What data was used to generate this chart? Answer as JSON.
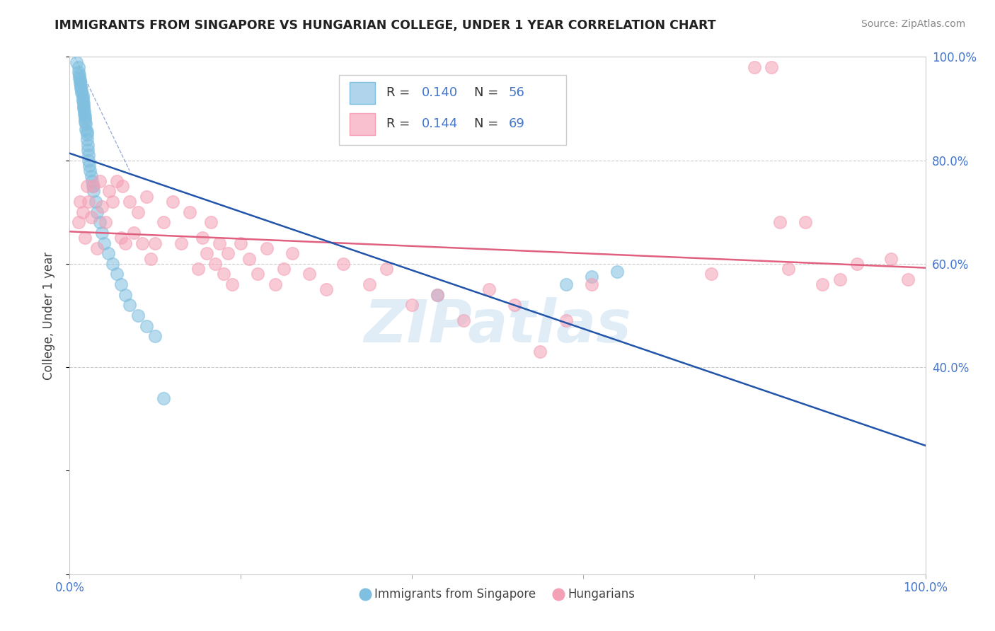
{
  "title": "IMMIGRANTS FROM SINGAPORE VS HUNGARIAN COLLEGE, UNDER 1 YEAR CORRELATION CHART",
  "source": "Source: ZipAtlas.com",
  "ylabel": "College, Under 1 year",
  "background_color": "#ffffff",
  "watermark": "ZIPatlas",
  "legend_label1": "Immigrants from Singapore",
  "legend_label2": "Hungarians",
  "blue_color": "#7fbfdf",
  "pink_color": "#f4a0b5",
  "trend_blue_color": "#2255aa",
  "trend_pink_color": "#e06080",
  "axis_color": "#4477cc",
  "R_color": "#4477cc",
  "xlim": [
    0.0,
    1.0
  ],
  "ylim": [
    0.0,
    1.0
  ],
  "sg_x": [
    0.008,
    0.01,
    0.01,
    0.011,
    0.011,
    0.012,
    0.012,
    0.013,
    0.013,
    0.014,
    0.014,
    0.015,
    0.015,
    0.015,
    0.016,
    0.016,
    0.016,
    0.017,
    0.017,
    0.018,
    0.018,
    0.018,
    0.019,
    0.019,
    0.02,
    0.02,
    0.02,
    0.021,
    0.021,
    0.022,
    0.022,
    0.023,
    0.024,
    0.025,
    0.026,
    0.027,
    0.028,
    0.03,
    0.032,
    0.035,
    0.038,
    0.04,
    0.045,
    0.05,
    0.055,
    0.06,
    0.065,
    0.07,
    0.08,
    0.09,
    0.1,
    0.11,
    0.43,
    0.58,
    0.61,
    0.64
  ],
  "sg_y": [
    0.99,
    0.98,
    0.97,
    0.965,
    0.96,
    0.955,
    0.95,
    0.945,
    0.94,
    0.935,
    0.93,
    0.925,
    0.92,
    0.915,
    0.91,
    0.905,
    0.9,
    0.895,
    0.89,
    0.885,
    0.88,
    0.875,
    0.87,
    0.86,
    0.855,
    0.85,
    0.84,
    0.83,
    0.82,
    0.81,
    0.8,
    0.79,
    0.78,
    0.77,
    0.76,
    0.75,
    0.74,
    0.72,
    0.7,
    0.68,
    0.66,
    0.64,
    0.62,
    0.6,
    0.58,
    0.56,
    0.54,
    0.52,
    0.5,
    0.48,
    0.46,
    0.34,
    0.54,
    0.56,
    0.575,
    0.585
  ],
  "hu_x": [
    0.01,
    0.012,
    0.015,
    0.018,
    0.02,
    0.022,
    0.025,
    0.028,
    0.032,
    0.035,
    0.038,
    0.042,
    0.046,
    0.05,
    0.055,
    0.06,
    0.062,
    0.065,
    0.07,
    0.075,
    0.08,
    0.085,
    0.09,
    0.095,
    0.1,
    0.11,
    0.12,
    0.13,
    0.14,
    0.15,
    0.155,
    0.16,
    0.165,
    0.17,
    0.175,
    0.18,
    0.185,
    0.19,
    0.2,
    0.21,
    0.22,
    0.23,
    0.24,
    0.25,
    0.26,
    0.28,
    0.3,
    0.32,
    0.35,
    0.37,
    0.4,
    0.43,
    0.46,
    0.49,
    0.52,
    0.55,
    0.58,
    0.61,
    0.75,
    0.8,
    0.82,
    0.83,
    0.84,
    0.86,
    0.88,
    0.9,
    0.92,
    0.96,
    0.98
  ],
  "hu_y": [
    0.68,
    0.72,
    0.7,
    0.65,
    0.75,
    0.72,
    0.69,
    0.75,
    0.63,
    0.76,
    0.71,
    0.68,
    0.74,
    0.72,
    0.76,
    0.65,
    0.75,
    0.64,
    0.72,
    0.66,
    0.7,
    0.64,
    0.73,
    0.61,
    0.64,
    0.68,
    0.72,
    0.64,
    0.7,
    0.59,
    0.65,
    0.62,
    0.68,
    0.6,
    0.64,
    0.58,
    0.62,
    0.56,
    0.64,
    0.61,
    0.58,
    0.63,
    0.56,
    0.59,
    0.62,
    0.58,
    0.55,
    0.6,
    0.56,
    0.59,
    0.52,
    0.54,
    0.49,
    0.55,
    0.52,
    0.43,
    0.49,
    0.56,
    0.58,
    0.98,
    0.98,
    0.68,
    0.59,
    0.68,
    0.56,
    0.57,
    0.6,
    0.61,
    0.57
  ]
}
